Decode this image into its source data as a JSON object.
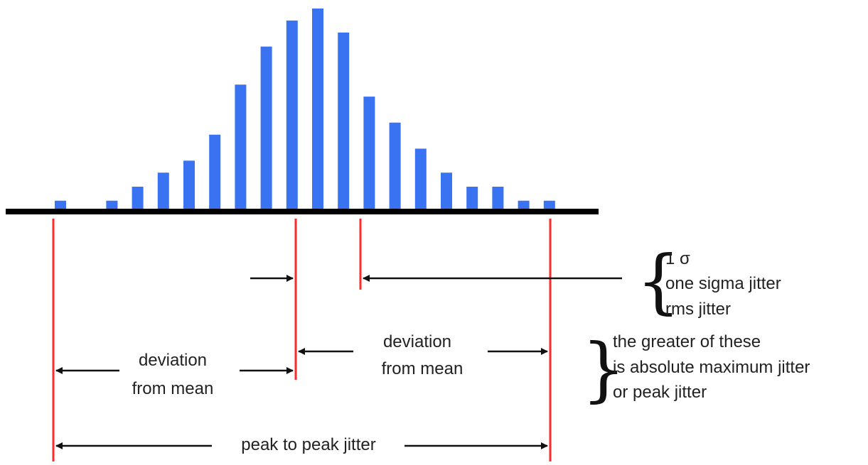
{
  "histogram": {
    "bar_color": "#3a73f2",
    "axis_color": "#000000",
    "marker_color": "#ff2a2a",
    "bars": [
      {
        "value": 0.04
      },
      {
        "value": 0.0
      },
      {
        "value": 0.04
      },
      {
        "value": 0.11
      },
      {
        "value": 0.18
      },
      {
        "value": 0.24
      },
      {
        "value": 0.37
      },
      {
        "value": 0.62
      },
      {
        "value": 0.81
      },
      {
        "value": 0.94
      },
      {
        "value": 1.0
      },
      {
        "value": 0.88
      },
      {
        "value": 0.56
      },
      {
        "value": 0.43
      },
      {
        "value": 0.3
      },
      {
        "value": 0.18
      },
      {
        "value": 0.11
      },
      {
        "value": 0.11
      },
      {
        "value": 0.04
      },
      {
        "value": 0.04
      }
    ]
  },
  "labels": {
    "dev_left_1": "deviation",
    "dev_left_2": "from mean",
    "dev_right_1": "deviation",
    "dev_right_2": "from mean",
    "p2p": "peak to peak jitter",
    "sigma_1": "1 σ",
    "sigma_2": "one sigma jitter",
    "sigma_3": "rms jitter",
    "max_1": "the greater of these",
    "max_2": "is absolute maximum jitter",
    "max_3": "or peak jitter"
  }
}
